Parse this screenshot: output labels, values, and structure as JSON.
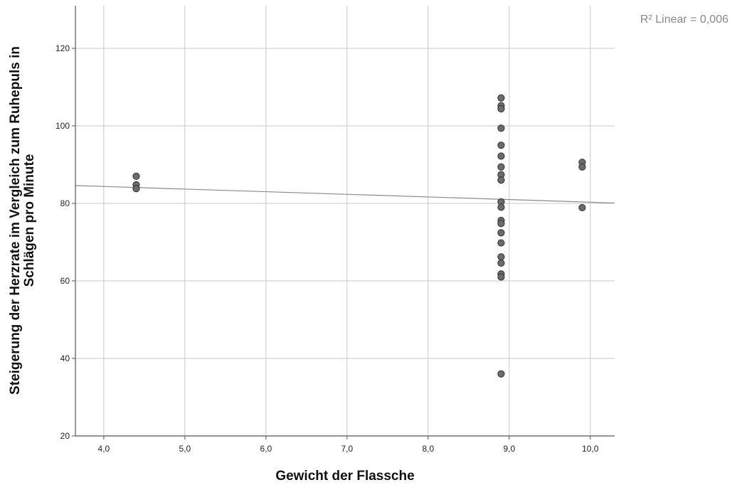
{
  "chart_data": {
    "type": "scatter",
    "xlabel": "Gewicht der Flassche",
    "ylabel_lines": [
      "Steigerung der Herzrate im Vergleich zum Ruhepuls in",
      "Schlägen pro Minute"
    ],
    "xlim": [
      3.65,
      10.3
    ],
    "ylim": [
      20,
      131
    ],
    "x_ticks": [
      4.0,
      5.0,
      6.0,
      7.0,
      8.0,
      9.0,
      10.0
    ],
    "x_tick_labels": [
      "4,0",
      "5,0",
      "6,0",
      "7,0",
      "8,0",
      "9,0",
      "10,0"
    ],
    "y_ticks": [
      20,
      40,
      60,
      80,
      100,
      120
    ],
    "y_tick_labels": [
      "20",
      "40",
      "60",
      "80",
      "100",
      "120"
    ],
    "grid": true,
    "points": [
      {
        "x": 4.4,
        "y": 87.0
      },
      {
        "x": 4.4,
        "y": 84.8
      },
      {
        "x": 4.4,
        "y": 83.8
      },
      {
        "x": 8.9,
        "y": 107.2
      },
      {
        "x": 8.9,
        "y": 105.2
      },
      {
        "x": 8.9,
        "y": 104.4
      },
      {
        "x": 8.9,
        "y": 99.4
      },
      {
        "x": 8.9,
        "y": 95.0
      },
      {
        "x": 8.9,
        "y": 92.2
      },
      {
        "x": 8.9,
        "y": 89.4
      },
      {
        "x": 8.9,
        "y": 87.4
      },
      {
        "x": 8.9,
        "y": 86.0
      },
      {
        "x": 8.9,
        "y": 80.4
      },
      {
        "x": 8.9,
        "y": 79.0
      },
      {
        "x": 8.9,
        "y": 75.6
      },
      {
        "x": 8.9,
        "y": 74.8
      },
      {
        "x": 8.9,
        "y": 72.4
      },
      {
        "x": 8.9,
        "y": 69.8
      },
      {
        "x": 8.9,
        "y": 66.2
      },
      {
        "x": 8.9,
        "y": 64.6
      },
      {
        "x": 8.9,
        "y": 61.8
      },
      {
        "x": 8.9,
        "y": 61.0
      },
      {
        "x": 8.9,
        "y": 36.0
      },
      {
        "x": 9.9,
        "y": 90.6
      },
      {
        "x": 9.9,
        "y": 89.4
      },
      {
        "x": 9.9,
        "y": 78.9
      }
    ],
    "fit_line": {
      "x": [
        3.65,
        10.3
      ],
      "y": [
        84.6,
        80.1
      ]
    },
    "annotation": "R² Linear = 0,006",
    "colors": {
      "point_fill": "#6b6b6b",
      "point_stroke": "#333333",
      "grid": "#c8c8c8",
      "axis": "#555555",
      "fit": "#8a8a8a"
    }
  }
}
